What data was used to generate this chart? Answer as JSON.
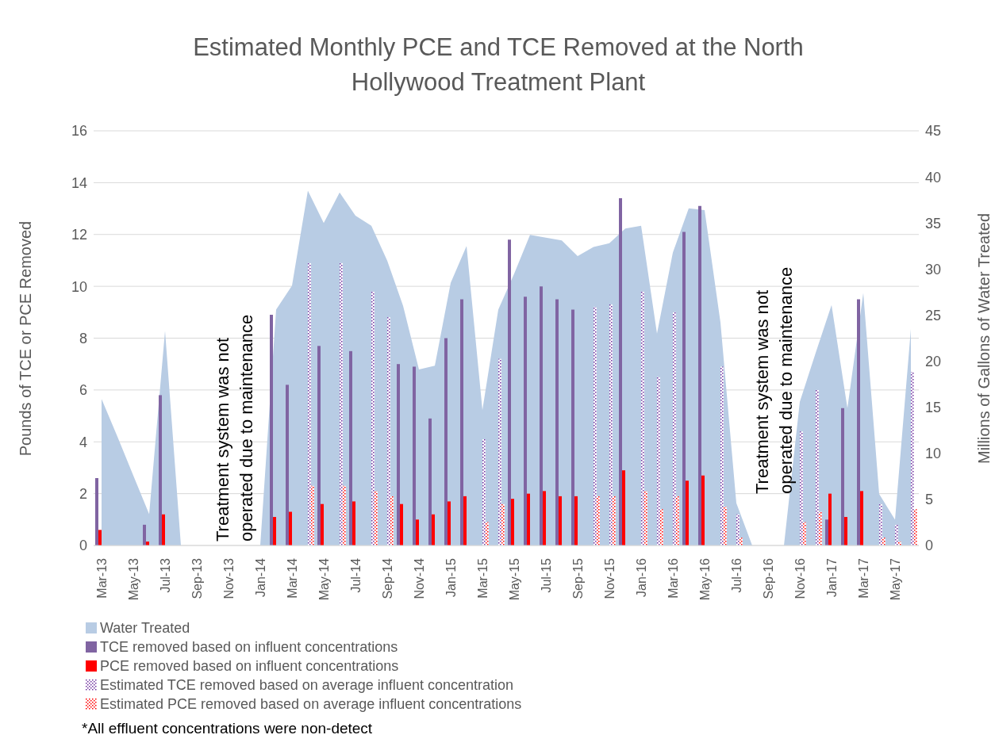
{
  "chart_data": {
    "type": "bar",
    "title": "Estimated Monthly PCE and TCE Removed at the North Hollywood Treatment Plant",
    "ylabel": "Pounds of TCE or PCE Removed",
    "y2label": "Millions of Gallons of Water Treated",
    "annotations": [
      "Treatment system was not operated due to maintenance",
      "Treatment system was not operated due to maintenance",
      "*All effluent concentrations were non-detect"
    ],
    "categories": [
      "Mar-13",
      null,
      "May-13",
      null,
      "Jul-13",
      null,
      "Sep-13",
      null,
      "Nov-13",
      null,
      "Jan-14",
      null,
      "Mar-14",
      null,
      "May-14",
      null,
      "Jul-14",
      null,
      "Sep-14",
      null,
      "Nov-14",
      null,
      "Jan-15",
      null,
      "Mar-15",
      null,
      "May-15",
      null,
      "Jul-15",
      null,
      "Sep-15",
      null,
      "Nov-15",
      null,
      "Jan-16",
      null,
      "Mar-16",
      null,
      "May-16",
      null,
      "Jul-16",
      null,
      "Sep-16",
      null,
      "Nov-16",
      null,
      "Jan-17",
      null,
      "Mar-17",
      null,
      "May-17",
      null
    ],
    "series": [
      {
        "name": "Water Treated",
        "type": "area",
        "axis": "y2",
        "color": "#b8cce4",
        "values": [
          15.9,
          11.8,
          7.6,
          3.4,
          23.3,
          0,
          0,
          0,
          0,
          0,
          0,
          25.6,
          28.2,
          38.5,
          35.0,
          38.3,
          35.8,
          34.7,
          30.9,
          26.0,
          19.1,
          19.5,
          28.5,
          32.5,
          14.7,
          25.6,
          29.5,
          33.7,
          33.4,
          33.1,
          31.4,
          32.4,
          32.8,
          34.4,
          34.7,
          23.0,
          31.8,
          36.6,
          36.4,
          24.2,
          4.6,
          0,
          0,
          0,
          15.6,
          20.9,
          26.1,
          14.9,
          27.4,
          5.6,
          2.8,
          23.5
        ]
      },
      {
        "name": "TCE removed based on influent concentrations",
        "color": "#8064a2",
        "values": [
          2.6,
          null,
          null,
          0.8,
          5.8,
          null,
          null,
          null,
          null,
          null,
          null,
          8.9,
          6.2,
          null,
          7.7,
          null,
          7.5,
          null,
          null,
          7.0,
          6.9,
          4.9,
          8.0,
          9.5,
          null,
          null,
          11.8,
          9.6,
          10.0,
          9.5,
          9.1,
          null,
          null,
          13.4,
          null,
          null,
          null,
          12.1,
          13.1,
          null,
          null,
          null,
          null,
          null,
          null,
          null,
          1.0,
          5.3,
          9.5,
          null,
          null,
          null
        ]
      },
      {
        "name": "PCE removed based on influent concentrations",
        "color": "#ff0000",
        "values": [
          0.6,
          null,
          null,
          0.15,
          1.2,
          null,
          null,
          null,
          null,
          null,
          null,
          1.1,
          1.3,
          null,
          1.6,
          null,
          1.7,
          null,
          null,
          1.6,
          1.0,
          1.2,
          1.7,
          1.9,
          null,
          null,
          1.8,
          2.0,
          2.1,
          1.9,
          1.9,
          null,
          null,
          2.9,
          null,
          null,
          null,
          2.5,
          2.7,
          null,
          null,
          null,
          null,
          null,
          null,
          null,
          2.0,
          1.1,
          2.1,
          null,
          null,
          null
        ]
      },
      {
        "name": "Estimated TCE removed based on average influent concentration",
        "line_style": "dotted",
        "color": "#7030a0",
        "values": [
          null,
          null,
          null,
          null,
          null,
          null,
          null,
          null,
          null,
          null,
          null,
          null,
          null,
          10.9,
          null,
          10.9,
          null,
          9.8,
          8.8,
          null,
          null,
          null,
          null,
          null,
          4.1,
          7.2,
          null,
          null,
          null,
          null,
          null,
          9.2,
          9.3,
          null,
          9.8,
          6.5,
          9.0,
          null,
          null,
          6.9,
          1.2,
          null,
          null,
          null,
          4.4,
          6.0,
          null,
          null,
          null,
          1.6,
          0.8,
          6.7
        ]
      },
      {
        "name": "Estimated PCE removed based on average influent concentrations",
        "line_style": "dotted",
        "color": "#ff0000",
        "values": [
          null,
          null,
          null,
          null,
          null,
          null,
          null,
          null,
          null,
          null,
          null,
          null,
          null,
          2.3,
          null,
          2.3,
          null,
          2.1,
          1.9,
          null,
          null,
          null,
          null,
          null,
          0.9,
          1.6,
          null,
          null,
          null,
          null,
          null,
          1.9,
          1.9,
          null,
          2.1,
          1.4,
          1.9,
          null,
          null,
          1.5,
          0.3,
          null,
          null,
          null,
          0.9,
          1.3,
          null,
          null,
          null,
          0.3,
          0.15,
          1.4
        ]
      }
    ],
    "ylim": [
      0,
      16
    ],
    "yticks": [
      0,
      2,
      4,
      6,
      8,
      10,
      12,
      14,
      16
    ],
    "y2lim": [
      0,
      45
    ],
    "y2ticks": [
      0,
      5,
      10,
      15,
      20,
      25,
      30,
      35,
      40,
      45
    ],
    "grid": "y",
    "legend": "bottom"
  }
}
